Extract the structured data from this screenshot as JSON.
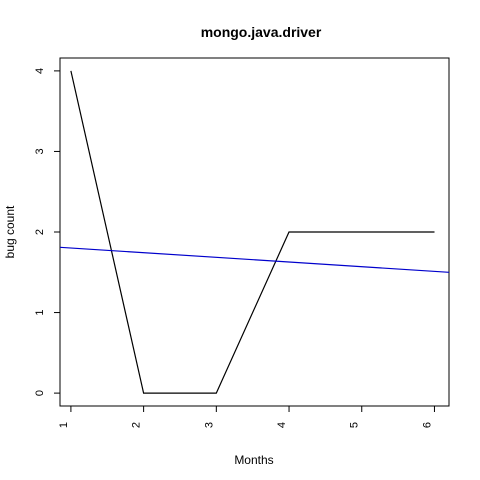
{
  "chart_data": {
    "type": "line",
    "title": "mongo.java.driver",
    "xlabel": "Months",
    "ylabel": "bug count",
    "x": [
      1,
      2,
      3,
      4,
      5,
      6
    ],
    "series": [
      {
        "color": "#000000",
        "kind": "line",
        "values": [
          4,
          0,
          0,
          2,
          2,
          2
        ]
      },
      {
        "color": "#0000cc",
        "kind": "trend",
        "points": [
          [
            0.85,
            1.81
          ],
          [
            6.2,
            1.5
          ]
        ]
      }
    ],
    "xticks": [
      1,
      2,
      3,
      4,
      5,
      6
    ],
    "yticks": [
      0,
      1,
      2,
      3,
      4
    ],
    "xlim": [
      0.85,
      6.2
    ],
    "ylim": [
      -0.16,
      4.16
    ],
    "grid": false,
    "legend": "none"
  }
}
